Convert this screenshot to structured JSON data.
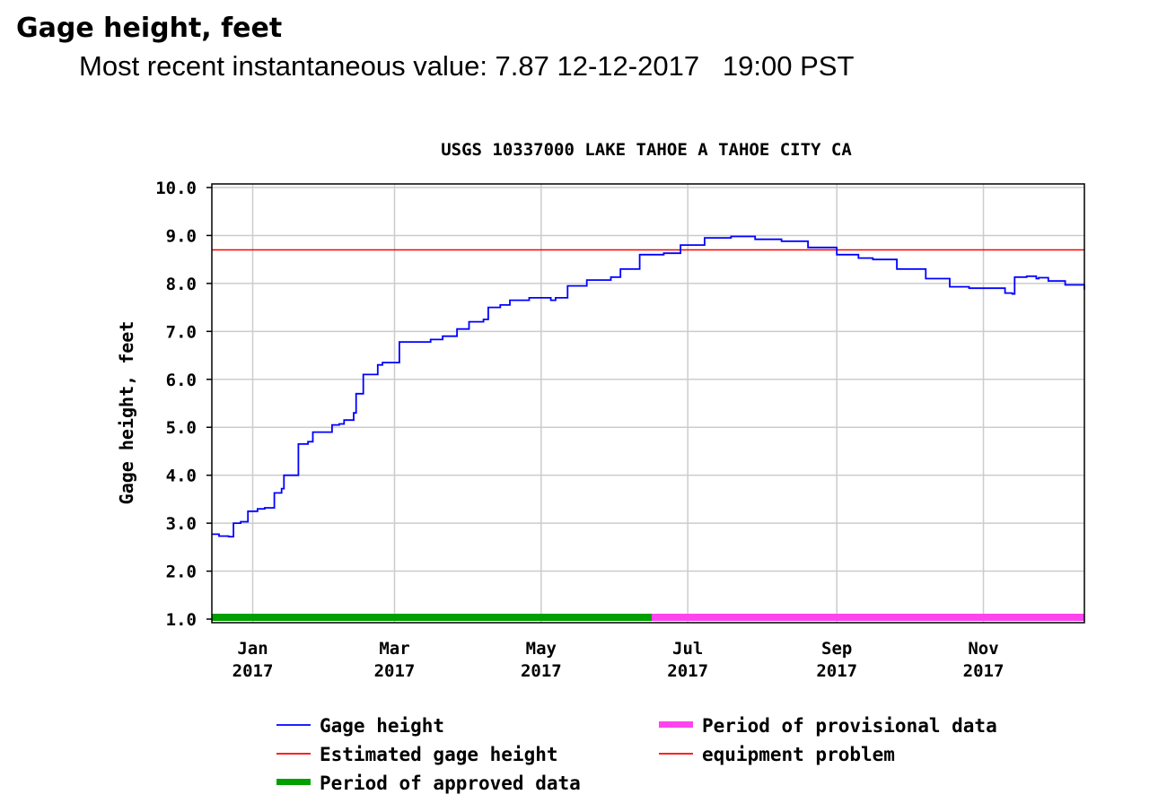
{
  "page": {
    "heading": "Gage height, feet",
    "recent_label": "Most recent instantaneous value: 7.87 12-12-2017   19:00 PST"
  },
  "chart_data": {
    "type": "line",
    "title": "USGS 10337000 LAKE TAHOE A TAHOE CITY CA",
    "xlabel": "",
    "ylabel": "Gage height, feet",
    "xlim": [
      "2016-12-15",
      "2017-12-13"
    ],
    "ylim": [
      1.0,
      10.0
    ],
    "y_ticks": [
      "10.0",
      "9.0",
      "8.0",
      "7.0",
      "6.0",
      "5.0",
      "4.0",
      "3.0",
      "2.0",
      "1.0"
    ],
    "x_ticks": [
      {
        "date": "2017-01-01",
        "label1": "Jan",
        "label2": "2017"
      },
      {
        "date": "2017-03-01",
        "label1": "Mar",
        "label2": "2017"
      },
      {
        "date": "2017-05-01",
        "label1": "May",
        "label2": "2017"
      },
      {
        "date": "2017-07-01",
        "label1": "Jul",
        "label2": "2017"
      },
      {
        "date": "2017-09-01",
        "label1": "Sep",
        "label2": "2017"
      },
      {
        "date": "2017-11-01",
        "label1": "Nov",
        "label2": "2017"
      }
    ],
    "grid": true,
    "series": [
      {
        "name": "Gage height",
        "color": "#0000ff",
        "x": [
          "2016-12-15",
          "2016-12-18",
          "2016-12-22",
          "2016-12-24",
          "2016-12-27",
          "2016-12-30",
          "2017-01-03",
          "2017-01-06",
          "2017-01-09",
          "2017-01-10",
          "2017-01-13",
          "2017-01-14",
          "2017-01-20",
          "2017-01-24",
          "2017-01-26",
          "2017-02-03",
          "2017-02-06",
          "2017-02-08",
          "2017-02-12",
          "2017-02-13",
          "2017-02-16",
          "2017-02-22",
          "2017-02-24",
          "2017-03-03",
          "2017-03-05",
          "2017-03-16",
          "2017-03-21",
          "2017-03-27",
          "2017-04-01",
          "2017-04-07",
          "2017-04-09",
          "2017-04-14",
          "2017-04-18",
          "2017-04-26",
          "2017-05-05",
          "2017-05-07",
          "2017-05-12",
          "2017-05-20",
          "2017-05-30",
          "2017-06-03",
          "2017-06-11",
          "2017-06-21",
          "2017-06-28",
          "2017-07-08",
          "2017-07-19",
          "2017-07-29",
          "2017-08-09",
          "2017-08-20",
          "2017-09-01",
          "2017-09-10",
          "2017-09-16",
          "2017-09-26",
          "2017-10-08",
          "2017-10-18",
          "2017-10-26",
          "2017-11-03",
          "2017-11-10",
          "2017-11-13",
          "2017-11-14",
          "2017-11-19",
          "2017-11-23",
          "2017-11-24",
          "2017-11-28",
          "2017-12-05",
          "2017-12-13"
        ],
        "y": [
          2.77,
          2.73,
          2.72,
          3.0,
          3.03,
          3.25,
          3.3,
          3.32,
          3.32,
          3.63,
          3.72,
          4.0,
          4.65,
          4.7,
          4.9,
          5.05,
          5.07,
          5.15,
          5.3,
          5.7,
          6.1,
          6.3,
          6.35,
          6.78,
          6.78,
          6.83,
          6.9,
          7.05,
          7.2,
          7.25,
          7.5,
          7.55,
          7.65,
          7.7,
          7.65,
          7.7,
          7.95,
          8.07,
          8.13,
          8.3,
          8.6,
          8.63,
          8.8,
          8.95,
          8.98,
          8.92,
          8.88,
          8.75,
          8.6,
          8.53,
          8.5,
          8.3,
          8.1,
          7.93,
          7.9,
          7.9,
          7.8,
          7.78,
          8.13,
          8.15,
          8.1,
          8.12,
          8.05,
          7.97,
          7.87
        ]
      }
    ],
    "bands": [
      {
        "name": "Period of approved data",
        "color": "#00a000",
        "start": "2016-12-15",
        "end": "2017-06-16"
      },
      {
        "name": "Period of provisional data",
        "color": "#ff44ee",
        "start": "2017-06-16",
        "end": "2017-12-13"
      }
    ],
    "threshold": {
      "name": "Estimated gage height",
      "color": "#ff0000",
      "value": 8.7
    },
    "legend": [
      {
        "label": "Gage height",
        "color": "#0000ff",
        "style": "line"
      },
      {
        "label": "Period of provisional data",
        "color": "#ff44ee",
        "style": "bar"
      },
      {
        "label": "Estimated gage height",
        "color": "#ff0000",
        "style": "line"
      },
      {
        "label": "equipment problem",
        "color": "#ff0000",
        "style": "line"
      },
      {
        "label": "Period of approved data",
        "color": "#00a000",
        "style": "bar"
      }
    ],
    "legend_position": "bottom",
    "colors": {
      "grid": "#cccccc",
      "frame": "#000000"
    }
  }
}
